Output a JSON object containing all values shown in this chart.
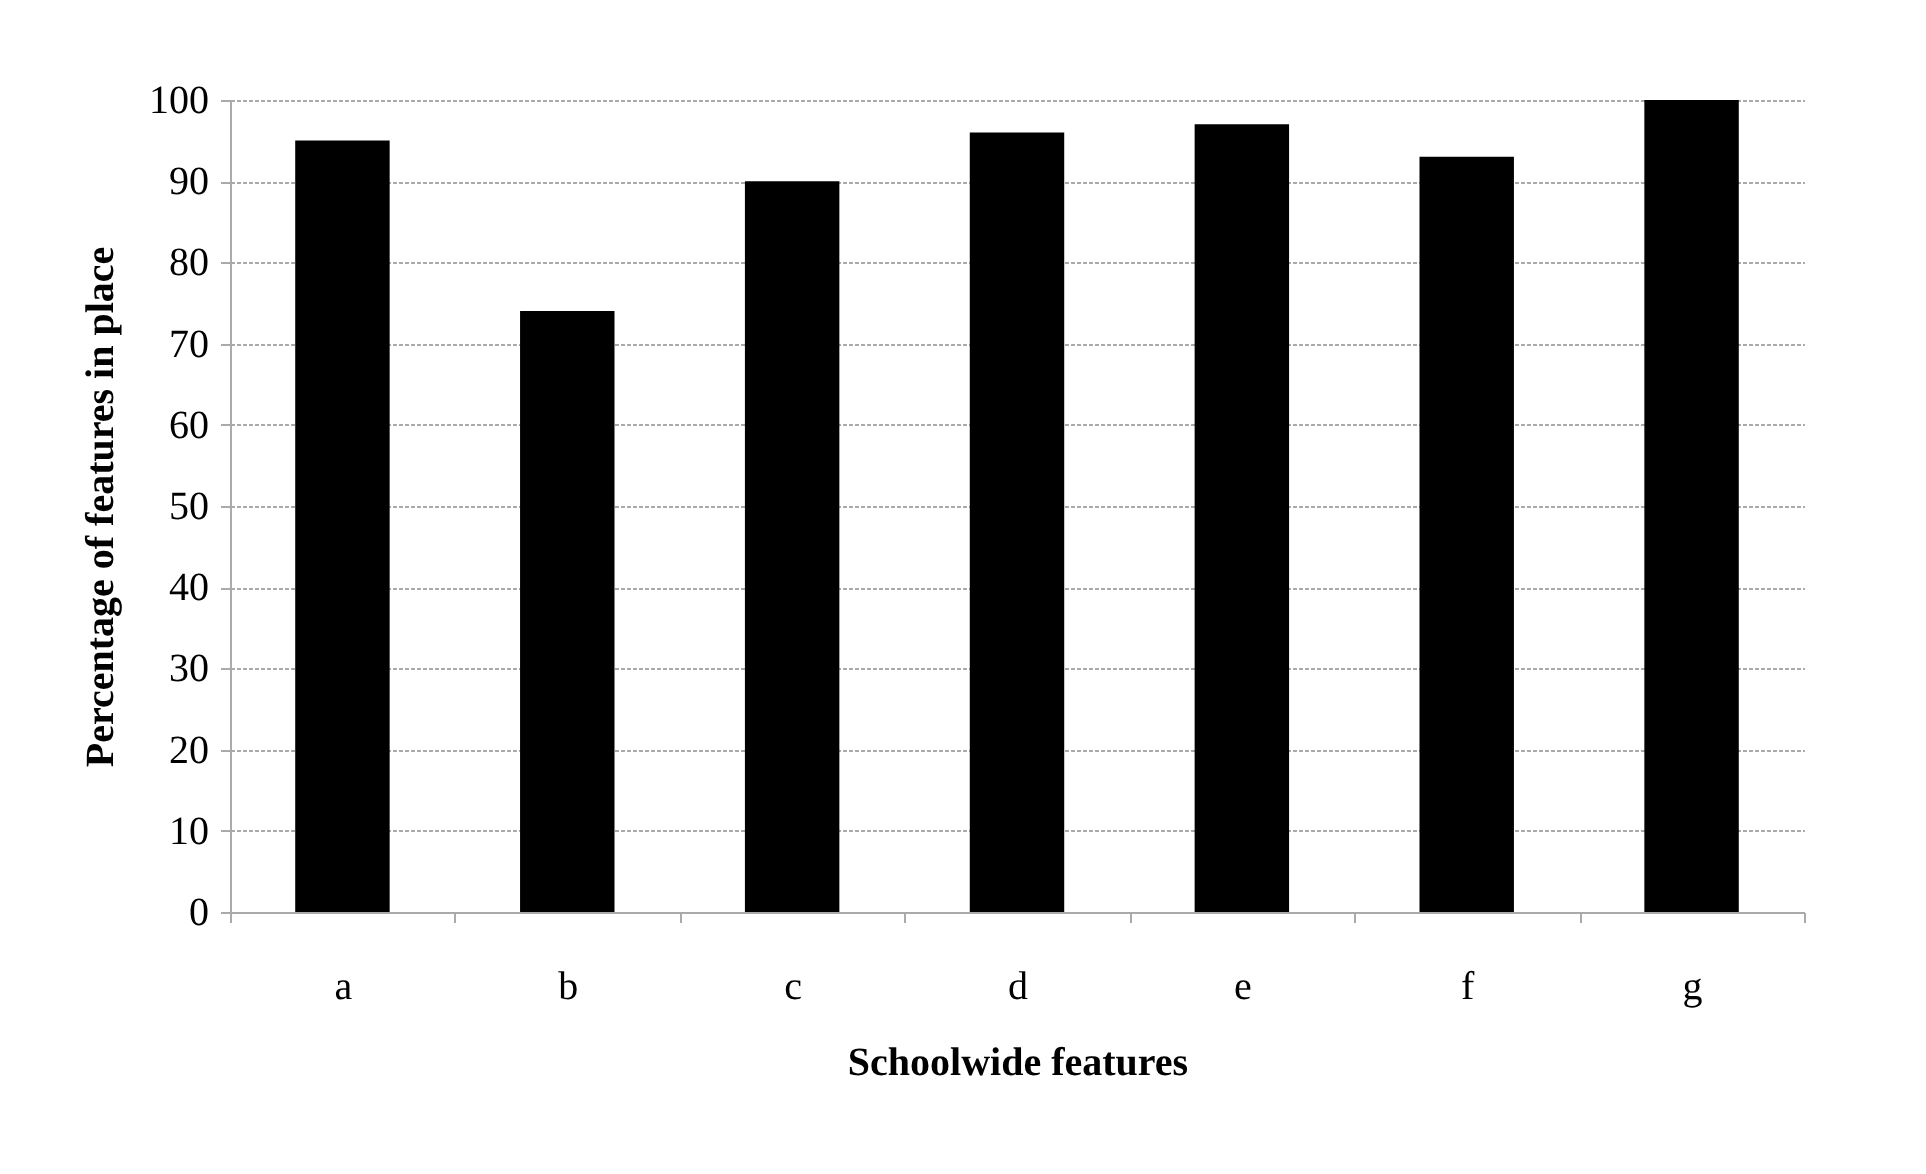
{
  "chart_data": {
    "type": "bar",
    "xlabel": "Schoolwide features",
    "ylabel": "Percentage of features in place",
    "categories": [
      "a",
      "b",
      "c",
      "d",
      "e",
      "f",
      "g"
    ],
    "values": [
      95,
      74,
      90,
      96,
      97,
      93,
      100
    ],
    "color": "#000000",
    "ylim": [
      0,
      100
    ],
    "yticks": [
      0,
      10,
      20,
      30,
      40,
      50,
      60,
      70,
      80,
      90,
      100
    ],
    "grid": "y"
  }
}
